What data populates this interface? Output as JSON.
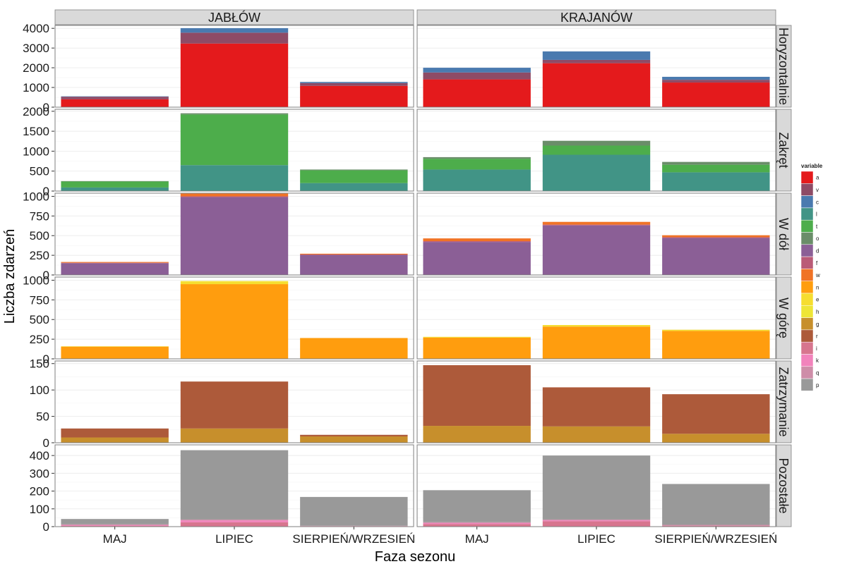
{
  "chart_data": {
    "type": "bar",
    "stacked": true,
    "xlabel": "Faza sezonu",
    "ylabel": "Liczba zdarzeń",
    "columns": [
      "JABŁÓW",
      "KRAJANÓW"
    ],
    "categories": [
      "MAJ",
      "LIPIEC",
      "SIERPIEŃ/WRZESIEŃ"
    ],
    "legend": {
      "title": "variable",
      "position": "right",
      "entries": [
        {
          "key": "a",
          "color": "#E41A1C"
        },
        {
          "key": "v",
          "color": "#8E4B66"
        },
        {
          "key": "c",
          "color": "#4A7AAF"
        },
        {
          "key": "l",
          "color": "#419486"
        },
        {
          "key": "t",
          "color": "#4DAD4B"
        },
        {
          "key": "o",
          "color": "#6A8D69"
        },
        {
          "key": "d",
          "color": "#8B5F96"
        },
        {
          "key": "f",
          "color": "#BA5B77"
        },
        {
          "key": "w",
          "color": "#F07326"
        },
        {
          "key": "n",
          "color": "#FF9D0E"
        },
        {
          "key": "e",
          "color": "#F6DD2F"
        },
        {
          "key": "h",
          "color": "#EEE535"
        },
        {
          "key": "g",
          "color": "#C78F2C"
        },
        {
          "key": "r",
          "color": "#AD5A3A"
        },
        {
          "key": "i",
          "color": "#D7758E"
        },
        {
          "key": "k",
          "color": "#F283BC"
        },
        {
          "key": "q",
          "color": "#CE8DA8"
        },
        {
          "key": "p",
          "color": "#999999"
        }
      ]
    },
    "panels": [
      {
        "row": "Horyzontalnie",
        "ylim": [
          0,
          4150
        ],
        "yticks": [
          0,
          1000,
          2000,
          3000,
          4000
        ],
        "data": {
          "JABŁÓW": {
            "MAJ": [
              {
                "var": "a",
                "value": 400
              },
              {
                "var": "v",
                "value": 130
              },
              {
                "var": "c",
                "value": 20
              }
            ],
            "LIPIEC": [
              {
                "var": "a",
                "value": 3230
              },
              {
                "var": "v",
                "value": 550
              },
              {
                "var": "c",
                "value": 230
              }
            ],
            "SIERPIEŃ/WRZESIEŃ": [
              {
                "var": "a",
                "value": 1080
              },
              {
                "var": "v",
                "value": 140
              },
              {
                "var": "c",
                "value": 60
              }
            ]
          },
          "KRAJANÓW": {
            "MAJ": [
              {
                "var": "a",
                "value": 1410
              },
              {
                "var": "v",
                "value": 350
              },
              {
                "var": "c",
                "value": 240
              }
            ],
            "LIPIEC": [
              {
                "var": "a",
                "value": 2230
              },
              {
                "var": "v",
                "value": 170
              },
              {
                "var": "c",
                "value": 430
              }
            ],
            "SIERPIEŃ/WRZESIEŃ": [
              {
                "var": "a",
                "value": 1250
              },
              {
                "var": "v",
                "value": 140
              },
              {
                "var": "c",
                "value": 150
              }
            ]
          }
        }
      },
      {
        "row": "Zakręt",
        "ylim": [
          0,
          2050
        ],
        "yticks": [
          0,
          500,
          1000,
          1500,
          2000
        ],
        "data": {
          "JABŁÓW": {
            "MAJ": [
              {
                "var": "l",
                "value": 90
              },
              {
                "var": "t",
                "value": 150
              },
              {
                "var": "o",
                "value": 10
              }
            ],
            "LIPIEC": [
              {
                "var": "l",
                "value": 650
              },
              {
                "var": "t",
                "value": 1270
              },
              {
                "var": "o",
                "value": 30
              }
            ],
            "SIERPIEŃ/WRZESIEŃ": [
              {
                "var": "l",
                "value": 200
              },
              {
                "var": "t",
                "value": 320
              },
              {
                "var": "o",
                "value": 20
              }
            ]
          },
          "KRAJANÓW": {
            "MAJ": [
              {
                "var": "l",
                "value": 540
              },
              {
                "var": "t",
                "value": 270
              },
              {
                "var": "o",
                "value": 40
              }
            ],
            "LIPIEC": [
              {
                "var": "l",
                "value": 910
              },
              {
                "var": "t",
                "value": 230
              },
              {
                "var": "o",
                "value": 120
              }
            ],
            "SIERPIEŃ/WRZESIEŃ": [
              {
                "var": "l",
                "value": 470
              },
              {
                "var": "t",
                "value": 190
              },
              {
                "var": "o",
                "value": 70
              }
            ]
          }
        }
      },
      {
        "row": "W dół",
        "ylim": [
          0,
          1040
        ],
        "yticks": [
          0,
          250,
          500,
          750,
          1000
        ],
        "data": {
          "JABŁÓW": {
            "MAJ": [
              {
                "var": "d",
                "value": 150
              },
              {
                "var": "f",
                "value": 5
              },
              {
                "var": "w",
                "value": 10
              }
            ],
            "LIPIEC": [
              {
                "var": "d",
                "value": 990
              },
              {
                "var": "f",
                "value": 10
              },
              {
                "var": "w",
                "value": 35
              }
            ],
            "SIERPIEŃ/WRZESIEŃ": [
              {
                "var": "d",
                "value": 255
              },
              {
                "var": "f",
                "value": 5
              },
              {
                "var": "w",
                "value": 10
              }
            ]
          },
          "KRAJANÓW": {
            "MAJ": [
              {
                "var": "d",
                "value": 420
              },
              {
                "var": "f",
                "value": 10
              },
              {
                "var": "w",
                "value": 35
              }
            ],
            "LIPIEC": [
              {
                "var": "d",
                "value": 630
              },
              {
                "var": "f",
                "value": 10
              },
              {
                "var": "w",
                "value": 35
              }
            ],
            "SIERPIEŃ/WRZESIEŃ": [
              {
                "var": "d",
                "value": 470
              },
              {
                "var": "f",
                "value": 10
              },
              {
                "var": "w",
                "value": 25
              }
            ]
          }
        }
      },
      {
        "row": "W górę",
        "ylim": [
          0,
          1040
        ],
        "yticks": [
          0,
          250,
          500,
          750,
          1000
        ],
        "data": {
          "JABŁÓW": {
            "MAJ": [
              {
                "var": "n",
                "value": 155
              },
              {
                "var": "e",
                "value": 5
              }
            ],
            "LIPIEC": [
              {
                "var": "n",
                "value": 950
              },
              {
                "var": "e",
                "value": 35
              },
              {
                "var": "h",
                "value": 5
              }
            ],
            "SIERPIEŃ/WRZESIEŃ": [
              {
                "var": "n",
                "value": 265
              }
            ]
          },
          "KRAJANÓW": {
            "MAJ": [
              {
                "var": "n",
                "value": 270
              },
              {
                "var": "e",
                "value": 10
              }
            ],
            "LIPIEC": [
              {
                "var": "n",
                "value": 410
              },
              {
                "var": "e",
                "value": 20
              }
            ],
            "SIERPIEŃ/WRZESIEŃ": [
              {
                "var": "n",
                "value": 355
              },
              {
                "var": "e",
                "value": 15
              }
            ]
          }
        }
      },
      {
        "row": "Zatrzymanie",
        "ylim": [
          0,
          155
        ],
        "yticks": [
          0,
          50,
          100,
          150
        ],
        "data": {
          "JABŁÓW": {
            "MAJ": [
              {
                "var": "g",
                "value": 10
              },
              {
                "var": "r",
                "value": 17
              }
            ],
            "LIPIEC": [
              {
                "var": "g",
                "value": 27
              },
              {
                "var": "r",
                "value": 89
              }
            ],
            "SIERPIEŃ/WRZESIEŃ": [
              {
                "var": "g",
                "value": 12
              },
              {
                "var": "r",
                "value": 3
              }
            ]
          },
          "KRAJANÓW": {
            "MAJ": [
              {
                "var": "g",
                "value": 32
              },
              {
                "var": "r",
                "value": 115
              }
            ],
            "LIPIEC": [
              {
                "var": "g",
                "value": 31
              },
              {
                "var": "r",
                "value": 74
              }
            ],
            "SIERPIEŃ/WRZESIEŃ": [
              {
                "var": "g",
                "value": 17
              },
              {
                "var": "r",
                "value": 75
              }
            ]
          }
        }
      },
      {
        "row": "Pozostałe",
        "ylim": [
          0,
          460
        ],
        "yticks": [
          0,
          100,
          200,
          300,
          400
        ],
        "data": {
          "JABŁÓW": {
            "MAJ": [
              {
                "var": "i",
                "value": 5
              },
              {
                "var": "k",
                "value": 3
              },
              {
                "var": "q",
                "value": 5
              },
              {
                "var": "p",
                "value": 30
              }
            ],
            "LIPIEC": [
              {
                "var": "i",
                "value": 25
              },
              {
                "var": "k",
                "value": 10
              },
              {
                "var": "q",
                "value": 5
              },
              {
                "var": "p",
                "value": 390
              }
            ],
            "SIERPIEŃ/WRZESIEŃ": [
              {
                "var": "i",
                "value": 3
              },
              {
                "var": "q",
                "value": 2
              },
              {
                "var": "p",
                "value": 162
              }
            ]
          },
          "KRAJANÓW": {
            "MAJ": [
              {
                "var": "i",
                "value": 15
              },
              {
                "var": "k",
                "value": 5
              },
              {
                "var": "q",
                "value": 5
              },
              {
                "var": "p",
                "value": 180
              }
            ],
            "LIPIEC": [
              {
                "var": "i",
                "value": 30
              },
              {
                "var": "k",
                "value": 5
              },
              {
                "var": "q",
                "value": 5
              },
              {
                "var": "p",
                "value": 360
              }
            ],
            "SIERPIEŃ/WRZESIEŃ": [
              {
                "var": "i",
                "value": 5
              },
              {
                "var": "q",
                "value": 5
              },
              {
                "var": "p",
                "value": 230
              }
            ]
          }
        }
      }
    ]
  }
}
